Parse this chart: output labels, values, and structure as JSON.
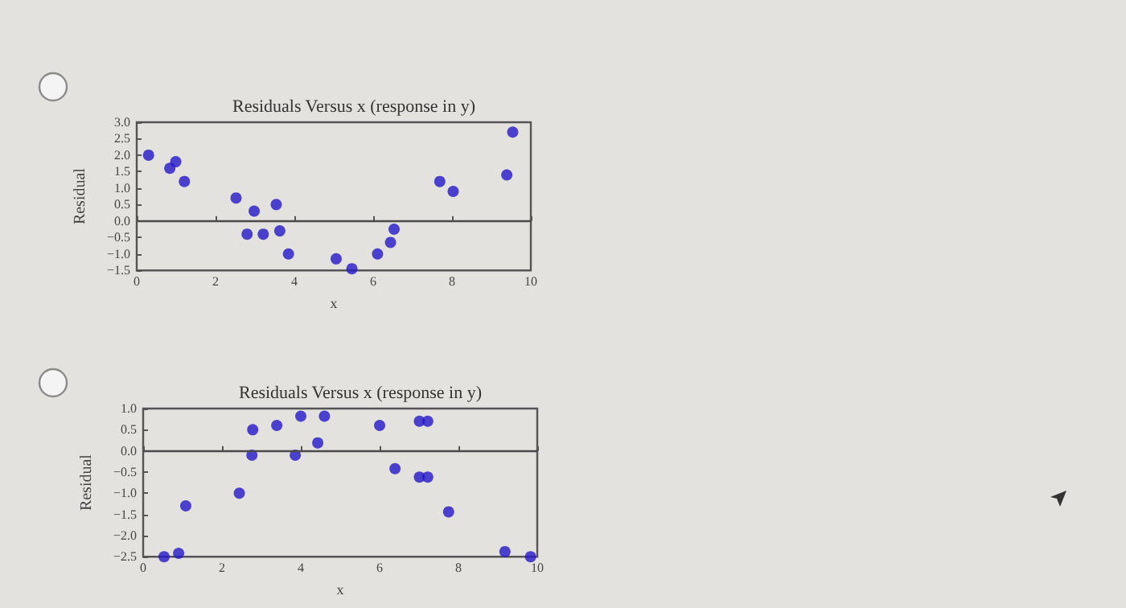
{
  "chart_data": [
    {
      "type": "scatter",
      "title": "Residuals Versus x (response in y)",
      "xlabel": "x",
      "ylabel": "Residual",
      "color": "#2418c8",
      "marker": "circle",
      "grid": false,
      "xlim": [
        0,
        10
      ],
      "xticks": [
        0,
        2,
        4,
        6,
        8,
        10
      ],
      "ylim": [
        -1.5,
        3.0
      ],
      "yticks": [
        {
          "value": -1.5,
          "label": "−1.5"
        },
        {
          "value": -1.0,
          "label": "−1.0"
        },
        {
          "value": -0.5,
          "label": "−0.5"
        },
        {
          "value": 0,
          "label": "0.0"
        },
        {
          "value": 0.5,
          "label": "0.5"
        },
        {
          "value": 1.0,
          "label": "1.0"
        },
        {
          "value": 1.5,
          "label": "1.5"
        },
        {
          "value": 2.0,
          "label": "2.0"
        },
        {
          "value": 2.5,
          "label": "2.5"
        },
        {
          "value": 3.0,
          "label": "3.0"
        }
      ],
      "ref_lines": [
        {
          "axis": "y",
          "value": 0,
          "color": "#4a4a4a"
        }
      ],
      "x": [
        0.3,
        0.84,
        0.99,
        1.21,
        2.52,
        2.8,
        2.98,
        3.21,
        3.54,
        3.63,
        3.85,
        5.06,
        5.46,
        6.11,
        6.44,
        6.53,
        7.69,
        8.03,
        9.39,
        9.54
      ],
      "values": [
        2.0,
        1.6,
        1.8,
        1.2,
        0.7,
        -0.4,
        0.3,
        -0.4,
        0.5,
        -0.3,
        -1.0,
        -1.15,
        -1.45,
        -1.0,
        -0.65,
        -0.25,
        1.2,
        0.9,
        1.4,
        2.7
      ]
    },
    {
      "type": "scatter",
      "title": "Residuals Versus x (response in y)",
      "xlabel": "x",
      "ylabel": "Residual",
      "color": "#2418c8",
      "marker": "circle",
      "grid": false,
      "xlim": [
        0,
        10
      ],
      "xticks": [
        0,
        2,
        4,
        6,
        8,
        10
      ],
      "ylim": [
        -2.5,
        1.0
      ],
      "yticks": [
        {
          "value": -2.5,
          "label": "−2.5"
        },
        {
          "value": -2.0,
          "label": "−2.0"
        },
        {
          "value": -1.5,
          "label": "−1.5"
        },
        {
          "value": -1.0,
          "label": "−1.0"
        },
        {
          "value": -0.5,
          "label": "−0.5"
        },
        {
          "value": 0,
          "label": "0.0"
        },
        {
          "value": 0.5,
          "label": "0.5"
        },
        {
          "value": 1.0,
          "label": "1.0"
        }
      ],
      "ref_lines": [
        {
          "axis": "y",
          "value": 0,
          "color": "#4a4a4a"
        }
      ],
      "x": [
        0.53,
        0.9,
        1.08,
        2.44,
        2.78,
        2.76,
        3.39,
        3.86,
        4.0,
        4.43,
        4.6,
        6.0,
        6.39,
        7.01,
        7.22,
        7.01,
        7.22,
        7.75,
        9.18,
        9.83
      ],
      "values": [
        -2.5,
        -2.42,
        -1.3,
        -1.0,
        0.5,
        -0.1,
        0.6,
        -0.1,
        0.82,
        0.19,
        0.82,
        0.6,
        -0.42,
        0.7,
        0.7,
        -0.62,
        -0.62,
        -1.44,
        -2.38,
        -2.5
      ]
    }
  ]
}
